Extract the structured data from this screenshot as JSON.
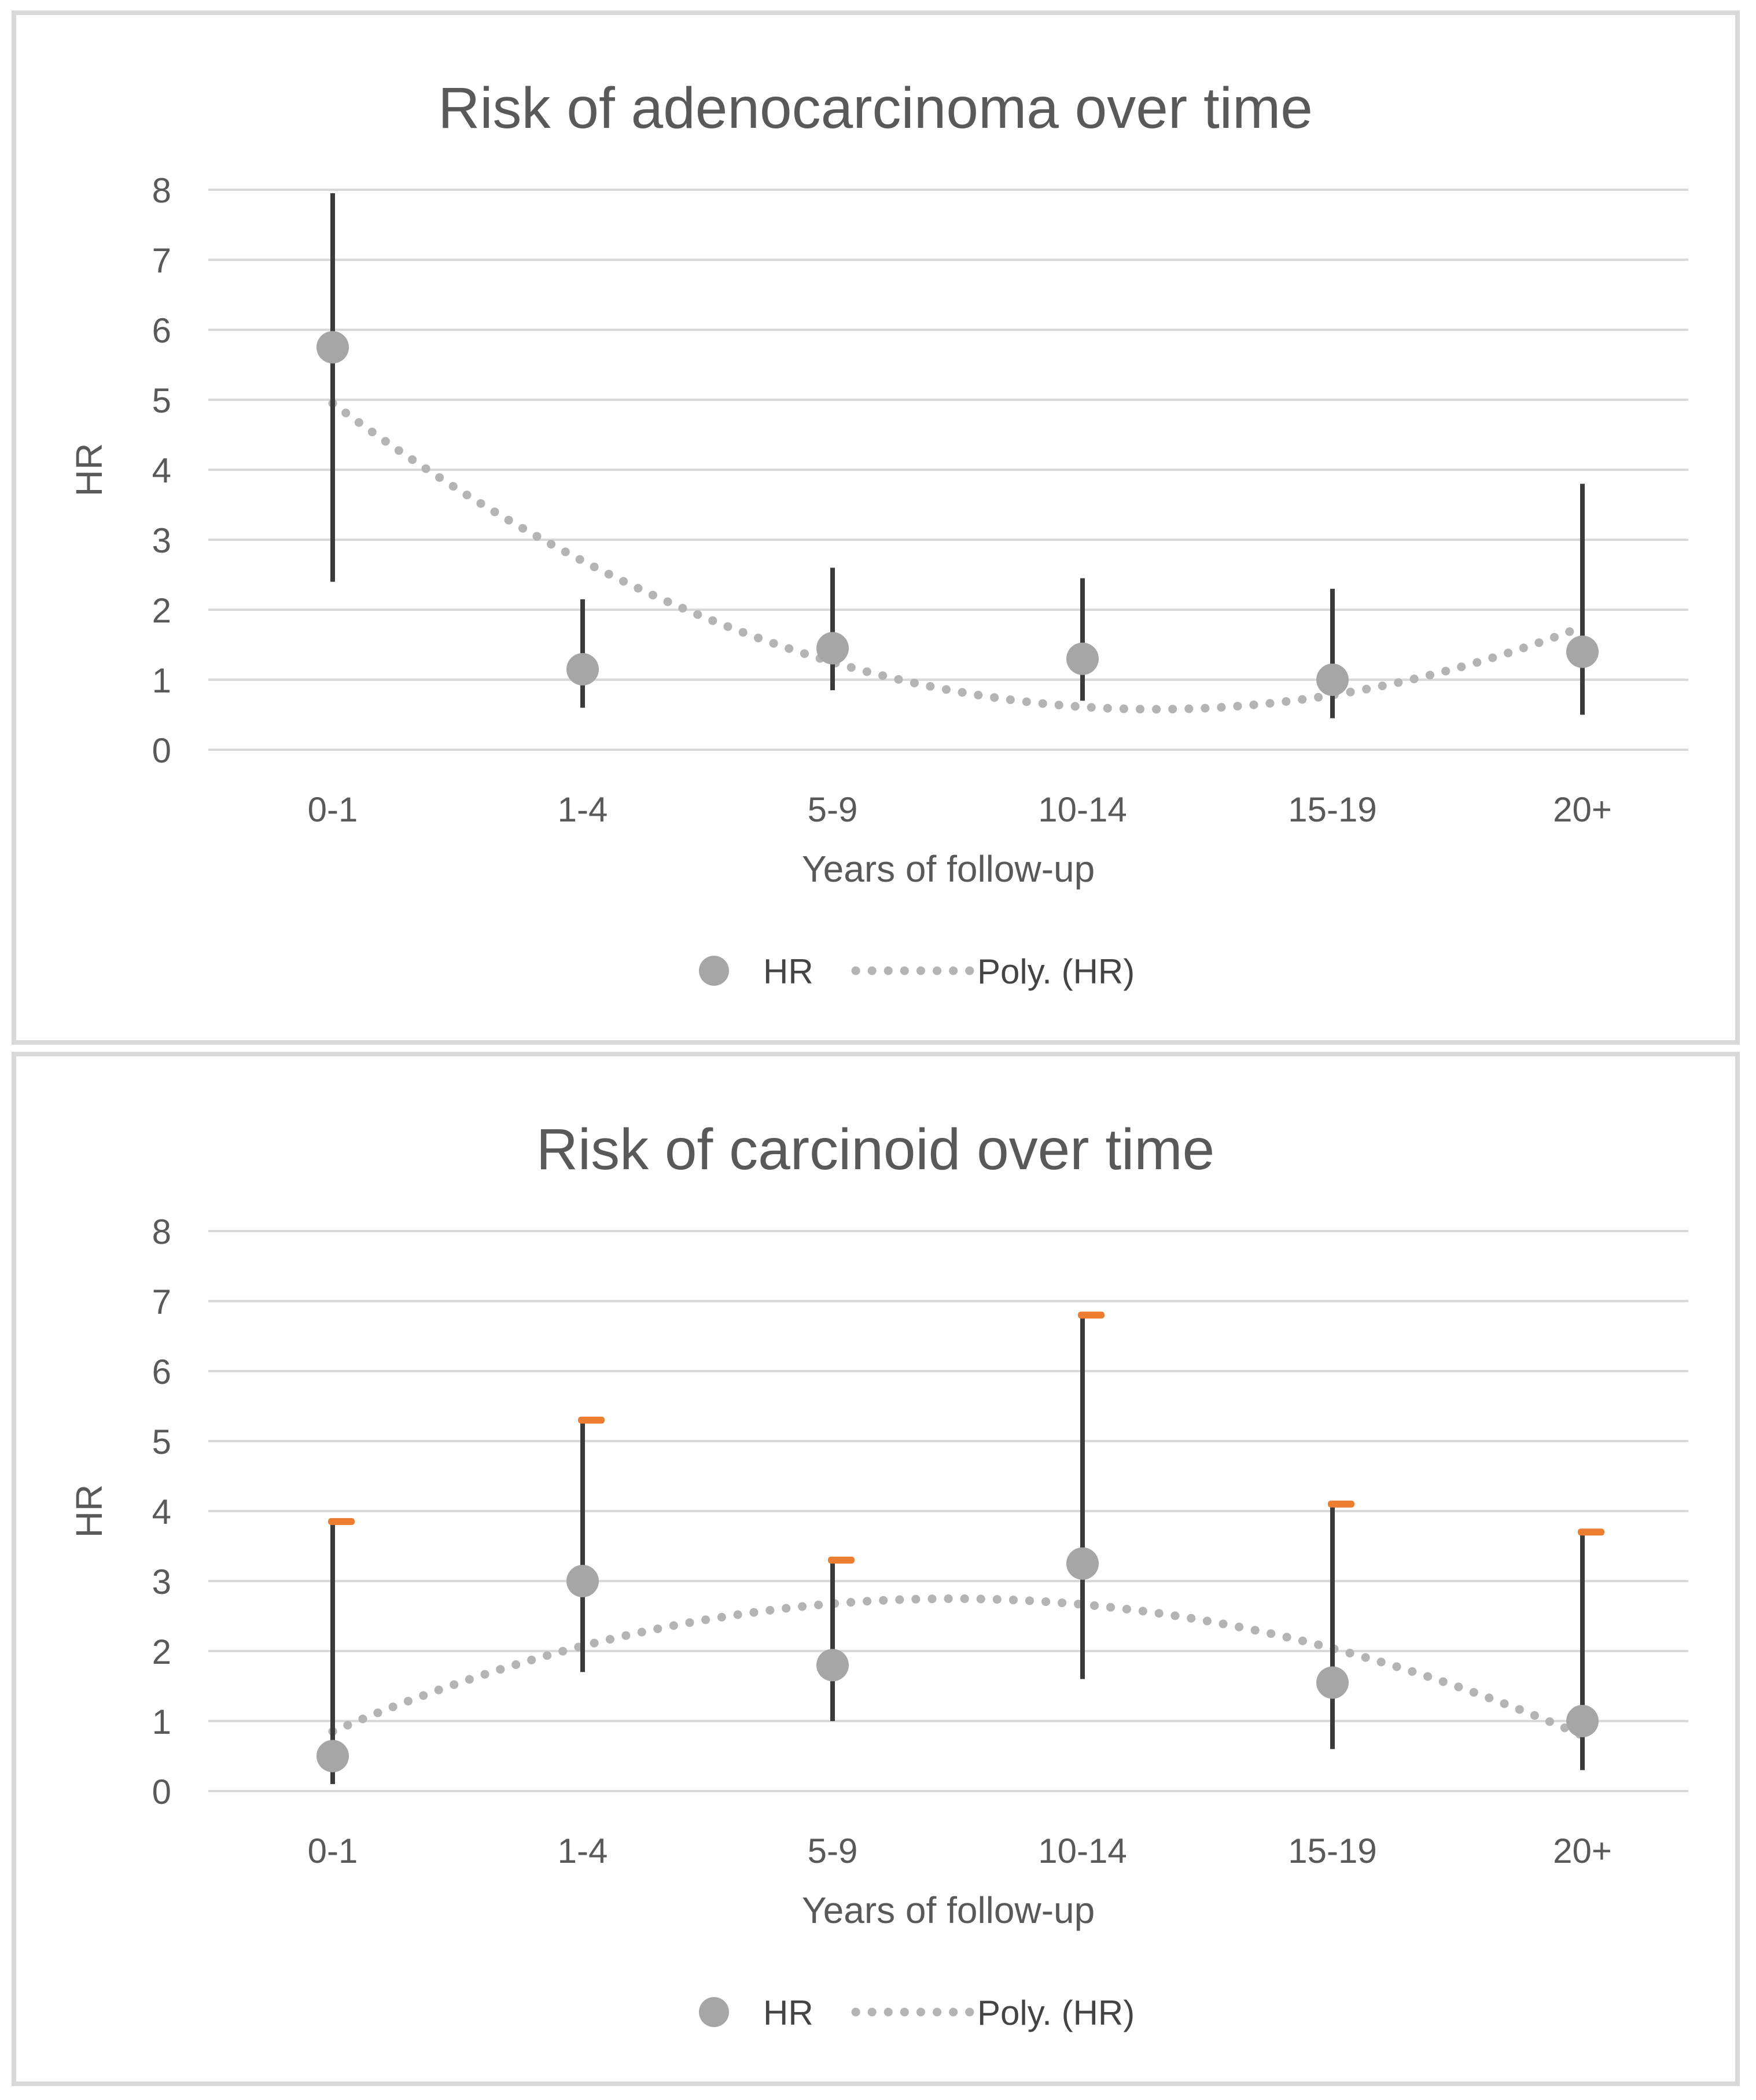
{
  "style": {
    "background": "#FFFFFF",
    "panel_border_color": "#D9D9D9",
    "gridline_color": "#D9D9D9",
    "title_color": "#595959",
    "tick_label_color": "#595959",
    "axis_title_color": "#595959",
    "legend_text_color": "#444444",
    "marker_color": "#A6A6A6",
    "error_bar_color": "#3B3B3B",
    "trendline_color": "#B4B4B4",
    "error_cap_color": "#ED7D31"
  },
  "chart_data": [
    {
      "type": "scatter",
      "title": "Risk of adenocarcinoma over time",
      "xlabel": "Years of follow-up",
      "ylabel": "HR",
      "categories": [
        "0-1",
        "1-4",
        "5-9",
        "10-14",
        "15-19",
        "20+"
      ],
      "series": [
        {
          "name": "HR",
          "values": [
            5.75,
            1.15,
            1.45,
            1.3,
            1.0,
            1.4
          ],
          "ci_low": [
            2.4,
            0.6,
            0.85,
            0.7,
            0.45,
            0.5
          ],
          "ci_high": [
            7.95,
            2.15,
            2.6,
            2.45,
            2.3,
            3.8
          ],
          "marker_color": "#A6A6A6",
          "error_cap_color": null
        }
      ],
      "trendline": {
        "name": "Poly. (HR)",
        "kind": "polynomial",
        "order": 2,
        "style": "dotted",
        "color": "#B4B4B4"
      },
      "legend": [
        "HR",
        "Poly. (HR)"
      ],
      "legend_position": "bottom",
      "ylim": [
        0,
        8
      ],
      "ytick_step": 1,
      "grid": true
    },
    {
      "type": "scatter",
      "title": "Risk of carcinoid over time",
      "xlabel": "Years of follow-up",
      "ylabel": "HR",
      "categories": [
        "0-1",
        "1-4",
        "5-9",
        "10-14",
        "15-19",
        "20+"
      ],
      "series": [
        {
          "name": "HR",
          "values": [
            0.5,
            3.0,
            1.8,
            3.25,
            1.55,
            1.0
          ],
          "ci_low": [
            0.1,
            1.7,
            1.0,
            1.6,
            0.6,
            0.3
          ],
          "ci_high": [
            3.85,
            5.3,
            3.3,
            6.8,
            4.1,
            3.7
          ],
          "marker_color": "#A6A6A6",
          "error_cap_color": "#ED7D31"
        }
      ],
      "trendline": {
        "name": "Poly. (HR)",
        "kind": "polynomial",
        "order": 2,
        "style": "dotted",
        "color": "#B4B4B4"
      },
      "legend": [
        "HR",
        "Poly. (HR)"
      ],
      "legend_position": "bottom",
      "ylim": [
        0,
        8
      ],
      "ytick_step": 1,
      "grid": true
    }
  ]
}
